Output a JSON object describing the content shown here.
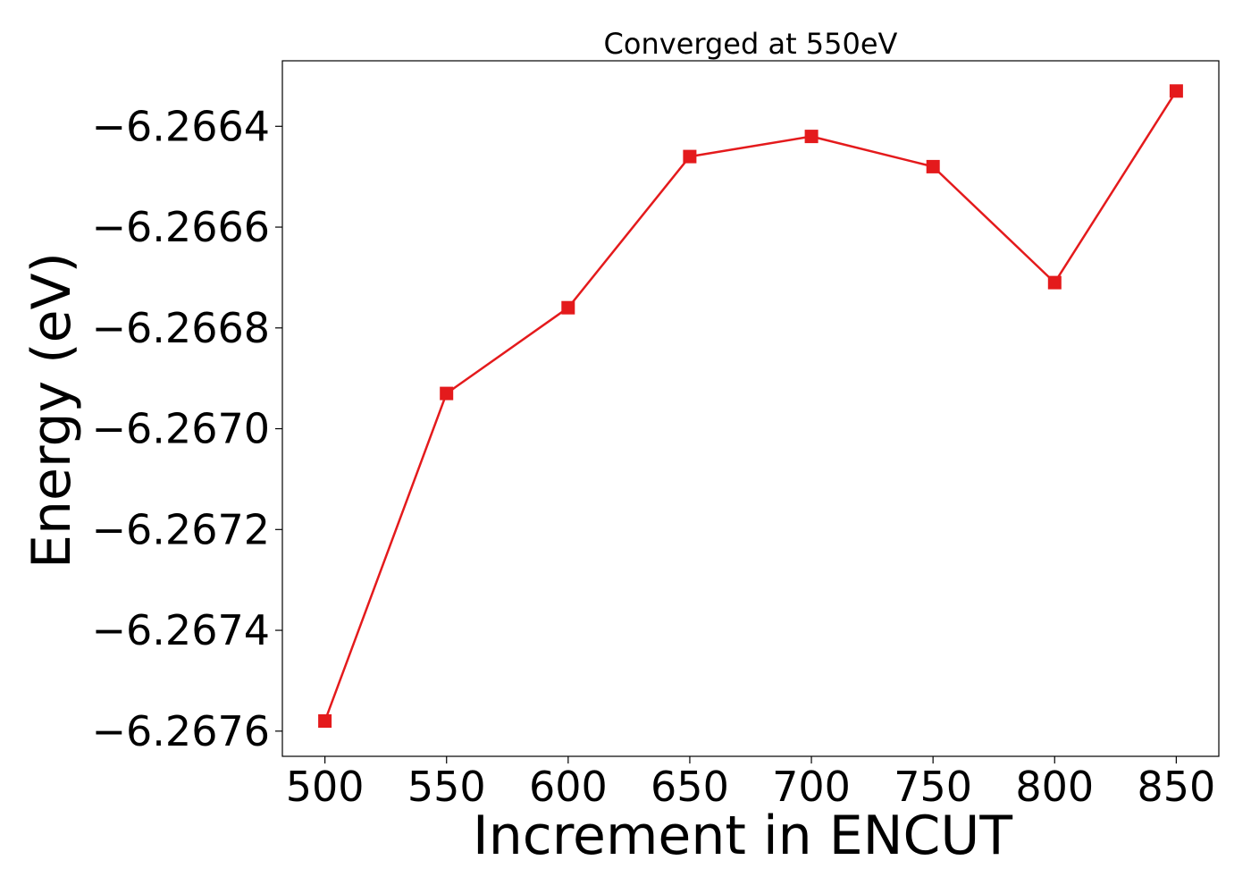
{
  "chart_data": {
    "type": "line",
    "title": "Converged at 550eV",
    "xlabel": "Increment in ENCUT",
    "ylabel": "Energy (eV)",
    "x": [
      500,
      550,
      600,
      650,
      700,
      750,
      800,
      850
    ],
    "series": [
      {
        "values": [
          -6.26758,
          -6.26693,
          -6.26676,
          -6.26646,
          -6.26642,
          -6.26648,
          -6.26671,
          -6.26633
        ],
        "color": "#e41a1c",
        "marker": "square"
      }
    ],
    "xticks": [
      500,
      550,
      600,
      650,
      700,
      750,
      800,
      850
    ],
    "xtick_labels": [
      "500",
      "550",
      "600",
      "650",
      "700",
      "750",
      "800",
      "850"
    ],
    "yticks": [
      -6.2676,
      -6.2674,
      -6.2672,
      -6.267,
      -6.2668,
      -6.2666,
      -6.2664
    ],
    "ytick_labels": [
      "−6.2676",
      "−6.2674",
      "−6.2672",
      "−6.2670",
      "−6.2668",
      "−6.2666",
      "−6.2664"
    ],
    "xlim": [
      482.5,
      867.5
    ],
    "ylim": [
      -6.26765,
      -6.26627
    ],
    "grid": false,
    "legend": "none"
  }
}
